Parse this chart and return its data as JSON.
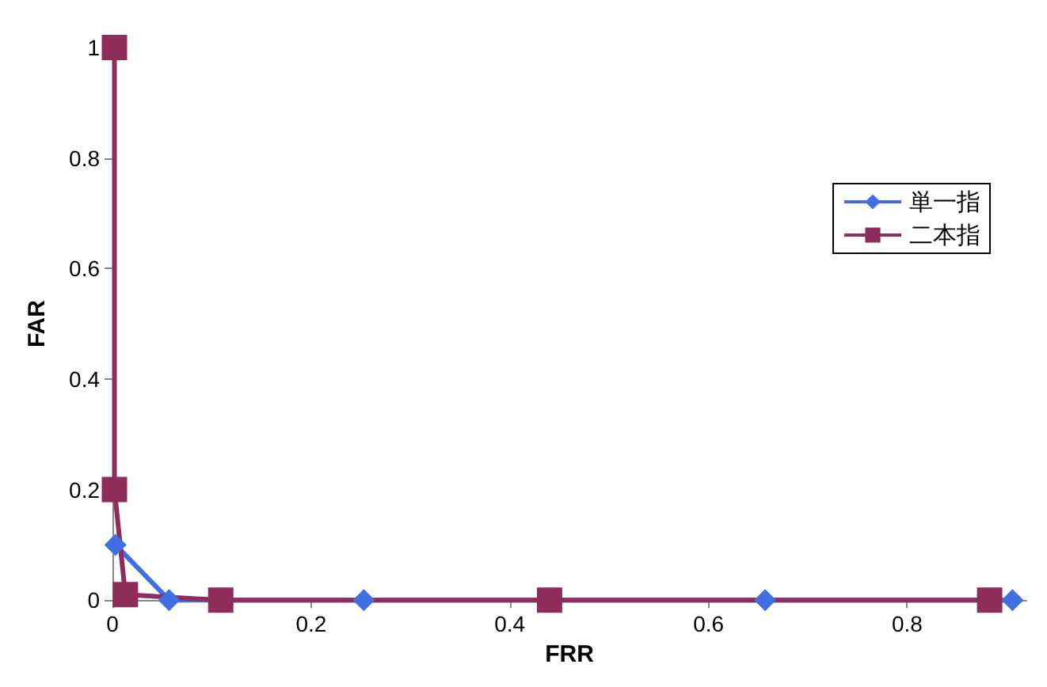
{
  "chart_data": {
    "type": "line",
    "xlabel": "FRR",
    "ylabel": "FAR",
    "xlim": [
      0,
      0.92
    ],
    "xticks": [
      0,
      0.2,
      0.4,
      0.6,
      0.8
    ],
    "ylim": [
      0,
      1
    ],
    "yticks": [
      0,
      0.2,
      0.4,
      0.6,
      0.8,
      1
    ],
    "grid": false,
    "legend": "right",
    "series": [
      {
        "name": "単一指",
        "color": "#3f6fe0",
        "marker": "diamond",
        "x": [
          0.003,
          0.057,
          0.253,
          0.657,
          0.906
        ],
        "values": [
          0.1,
          0,
          0,
          0,
          0
        ]
      },
      {
        "name": "二本指",
        "color": "#8e2c5c",
        "marker": "square",
        "x": [
          0.002,
          0.002,
          0.013,
          0.109,
          0.44,
          0.883
        ],
        "values": [
          1,
          0.2,
          0.01,
          0,
          0,
          0
        ]
      }
    ]
  }
}
